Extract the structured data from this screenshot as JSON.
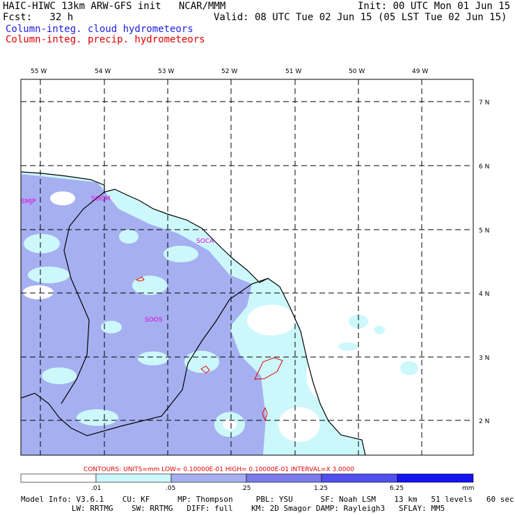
{
  "header": {
    "title_left": "HAIC-HIWC 13km ARW-GFS init   NCAR/MMM",
    "init": "Init: 00 UTC Mon 01 Jun 15",
    "fcst": "Fcst:   32 h",
    "valid": "Valid: 08 UTC Tue 02 Jun 15 (05 LST Tue 02 Jun 15)",
    "field1": "Column-integ. cloud hydrometeors",
    "field2": "Column-integ. precip. hydrometeors"
  },
  "map": {
    "lon_labels": [
      "55 W",
      "54 W",
      "53 W",
      "52 W",
      "51 W",
      "50 W",
      "49 W"
    ],
    "lat_labels": [
      "7 N",
      "6 N",
      "5 N",
      "4 N",
      "3 N",
      "2 N"
    ],
    "station_labels": [
      "SMJP",
      "SOGM",
      "SOCA",
      "SOOS"
    ]
  },
  "contour_info": "CONTOURS:  UNITS=mm  LOW= 0.10000E-01  HIGH= 0.10000E-01  INTERVAL=X  3.0000",
  "colorbar": {
    "ticks": [
      ".01",
      ".05",
      ".25",
      "1.25",
      "6.25"
    ],
    "units": "mm",
    "colors": [
      "#ffffff",
      "#ccf8fc",
      "#a6b0f0",
      "#7a7ae8",
      "#5050f0",
      "#1414f0"
    ]
  },
  "model_info": {
    "line1": "Model Info: V3.6.1    CU: KF      MP: Thompson     PBL: YSU      SF: Noah LSM    13 km   51 levels   60 sec",
    "line2": "           LW: RRTMG    SW: RRTMG   DIFF: full    KM: 2D Smagor DAMP: Rayleigh3   SFLAY: MM5"
  },
  "colors": {
    "cloud": "#2020e0",
    "precip": "#e00000",
    "labels": "#e000e0"
  }
}
